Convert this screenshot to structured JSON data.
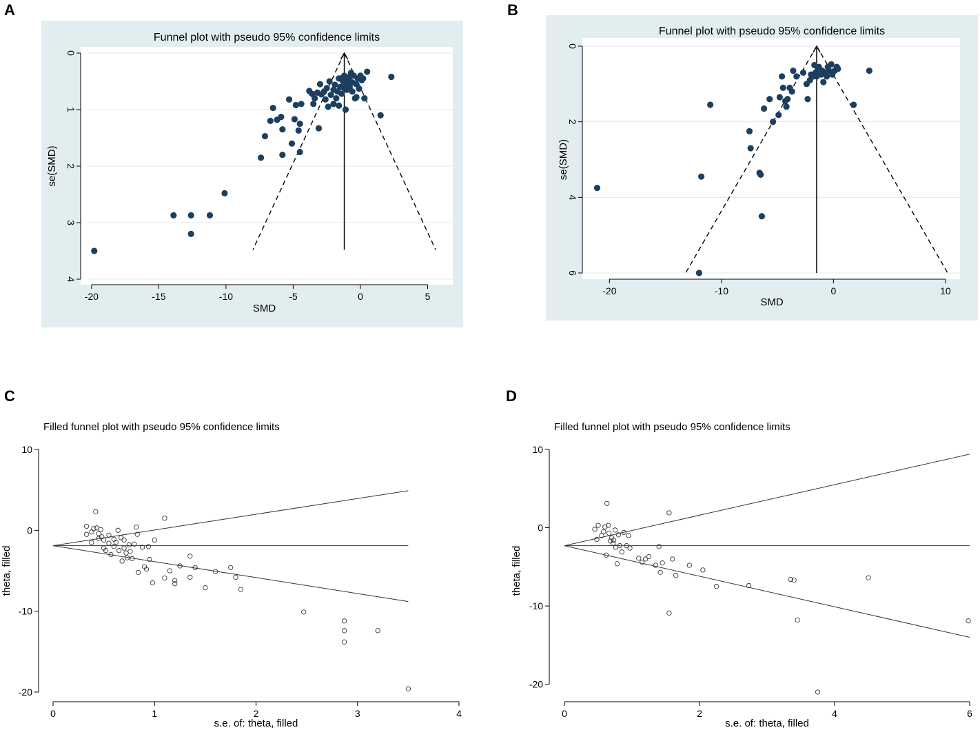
{
  "chart_data": [
    {
      "panel": "A",
      "type": "scatter",
      "title": "Funnel plot with pseudo 95% confidence limits",
      "xlabel": "SMD",
      "ylabel": "se(SMD)",
      "xlim": [
        -20.3,
        6
      ],
      "ylim": [
        0,
        4
      ],
      "y_inverted": true,
      "xticks": [
        -20,
        -15,
        -10,
        -5,
        0,
        5
      ],
      "yticks": [
        0,
        1,
        2,
        3,
        4
      ],
      "pooled": -1.2,
      "funnel": {
        "apex": [
          -1.2,
          0
        ],
        "left": [
          -8.0,
          3.48
        ],
        "right": [
          5.6,
          3.48
        ]
      },
      "points": [
        [
          -19.8,
          3.5
        ],
        [
          -13.9,
          2.87
        ],
        [
          -12.6,
          2.87
        ],
        [
          -12.6,
          3.2
        ],
        [
          -11.2,
          2.87
        ],
        [
          -10.1,
          2.48
        ],
        [
          -7.4,
          1.85
        ],
        [
          -7.1,
          1.47
        ],
        [
          -6.7,
          1.2
        ],
        [
          -6.5,
          0.97
        ],
        [
          -6.2,
          1.18
        ],
        [
          -5.9,
          1.13
        ],
        [
          -5.8,
          1.8
        ],
        [
          -5.8,
          1.35
        ],
        [
          -5.3,
          0.82
        ],
        [
          -5.1,
          1.6
        ],
        [
          -4.9,
          1.17
        ],
        [
          -4.8,
          0.92
        ],
        [
          -4.6,
          1.37
        ],
        [
          -4.5,
          1.25
        ],
        [
          -4.5,
          1.75
        ],
        [
          -4.4,
          0.9
        ],
        [
          -3.8,
          0.67
        ],
        [
          -3.6,
          0.72
        ],
        [
          -3.5,
          0.9
        ],
        [
          -3.4,
          0.8
        ],
        [
          -3.2,
          0.7
        ],
        [
          -3.1,
          1.33
        ],
        [
          -3.0,
          0.55
        ],
        [
          -2.9,
          0.73
        ],
        [
          -2.7,
          0.68
        ],
        [
          -2.6,
          0.82
        ],
        [
          -2.5,
          0.62
        ],
        [
          -2.4,
          0.95
        ],
        [
          -2.3,
          0.5
        ],
        [
          -2.2,
          0.74
        ],
        [
          -2.0,
          0.65
        ],
        [
          -2.0,
          0.9
        ],
        [
          -1.9,
          0.56
        ],
        [
          -1.8,
          0.8
        ],
        [
          -1.7,
          0.68
        ],
        [
          -1.6,
          0.45
        ],
        [
          -1.6,
          0.93
        ],
        [
          -1.5,
          0.6
        ],
        [
          -1.4,
          0.72
        ],
        [
          -1.3,
          0.5
        ],
        [
          -1.2,
          0.4
        ],
        [
          -1.2,
          0.62
        ],
        [
          -1.1,
          0.55
        ],
        [
          -1.1,
          1.0
        ],
        [
          -1.0,
          0.45
        ],
        [
          -1.0,
          0.65
        ],
        [
          -0.9,
          0.5
        ],
        [
          -0.8,
          0.6
        ],
        [
          -0.7,
          0.35
        ],
        [
          -0.6,
          0.52
        ],
        [
          -0.6,
          0.68
        ],
        [
          -0.5,
          0.4
        ],
        [
          -0.4,
          0.8
        ],
        [
          -0.3,
          0.55
        ],
        [
          -0.3,
          0.78
        ],
        [
          -0.2,
          0.45
        ],
        [
          -0.1,
          0.63
        ],
        [
          0.0,
          0.4
        ],
        [
          0.1,
          0.48
        ],
        [
          0.2,
          0.45
        ],
        [
          0.3,
          0.8
        ],
        [
          0.5,
          0.33
        ],
        [
          2.3,
          0.42
        ],
        [
          1.5,
          1.1
        ],
        [
          -0.8,
          0.42
        ],
        [
          -1.5,
          0.45
        ]
      ]
    },
    {
      "panel": "B",
      "type": "scatter",
      "title": "Funnel plot with pseudo 95% confidence limits",
      "xlabel": "SMD",
      "ylabel": "se(SMD)",
      "xlim": [
        -21.5,
        10.5
      ],
      "ylim": [
        0,
        6
      ],
      "y_inverted": true,
      "xticks": [
        -20,
        -10,
        0,
        10
      ],
      "yticks": [
        0,
        2,
        4,
        6
      ],
      "pooled": -1.5,
      "funnel": {
        "apex": [
          -1.5,
          0
        ],
        "left": [
          -13.2,
          6.0
        ],
        "right": [
          10.2,
          6.0
        ]
      },
      "points": [
        [
          -21.1,
          3.75
        ],
        [
          -12.0,
          6.0
        ],
        [
          -11.8,
          3.45
        ],
        [
          -11.0,
          1.55
        ],
        [
          -7.5,
          2.25
        ],
        [
          -7.4,
          2.7
        ],
        [
          -6.6,
          3.35
        ],
        [
          -6.5,
          3.4
        ],
        [
          -6.4,
          4.5
        ],
        [
          -6.2,
          1.65
        ],
        [
          -5.7,
          1.4
        ],
        [
          -5.4,
          2.0
        ],
        [
          -4.9,
          1.82
        ],
        [
          -4.8,
          1.35
        ],
        [
          -4.6,
          0.8
        ],
        [
          -4.5,
          1.1
        ],
        [
          -4.3,
          1.45
        ],
        [
          -4.1,
          1.4
        ],
        [
          -4.2,
          1.6
        ],
        [
          -3.9,
          1.1
        ],
        [
          -3.7,
          1.2
        ],
        [
          -3.6,
          0.65
        ],
        [
          -3.3,
          0.8
        ],
        [
          -2.7,
          0.7
        ],
        [
          -2.3,
          1.4
        ],
        [
          -2.4,
          1.0
        ],
        [
          -2.1,
          0.9
        ],
        [
          -2.0,
          0.75
        ],
        [
          -1.8,
          0.8
        ],
        [
          -1.7,
          0.5
        ],
        [
          -1.6,
          0.7
        ],
        [
          -1.5,
          0.8
        ],
        [
          -1.4,
          0.6
        ],
        [
          -1.3,
          0.55
        ],
        [
          -1.1,
          0.75
        ],
        [
          -1.0,
          0.65
        ],
        [
          -0.9,
          0.95
        ],
        [
          -0.7,
          0.7
        ],
        [
          -0.6,
          0.8
        ],
        [
          -0.5,
          0.55
        ],
        [
          -0.4,
          0.65
        ],
        [
          -0.2,
          0.48
        ],
        [
          -0.1,
          0.75
        ],
        [
          0.1,
          0.65
        ],
        [
          0.3,
          0.55
        ],
        [
          0.4,
          0.6
        ],
        [
          1.8,
          1.55
        ],
        [
          3.2,
          0.65
        ]
      ]
    },
    {
      "panel": "C",
      "type": "scatter",
      "title": "Filled funnel plot with pseudo 95% confidence limits",
      "xlabel": "s.e. of: theta, filled",
      "ylabel": "theta, filled",
      "xlim": [
        0,
        4
      ],
      "ylim": [
        -20,
        10
      ],
      "xticks": [
        0,
        1,
        2,
        3,
        4
      ],
      "yticks": [
        -20,
        -10,
        0,
        10
      ],
      "lines": {
        "center": [
          [
            0,
            -1.9
          ],
          [
            3.5,
            -1.9
          ]
        ],
        "upper": [
          [
            0,
            -1.9
          ],
          [
            3.5,
            4.9
          ]
        ],
        "lower": [
          [
            0,
            -1.9
          ],
          [
            3.5,
            -8.8
          ]
        ]
      },
      "points": [
        [
          0.33,
          0.5
        ],
        [
          0.33,
          -0.5
        ],
        [
          0.38,
          -0.2
        ],
        [
          0.38,
          -1.5
        ],
        [
          0.4,
          0.2
        ],
        [
          0.42,
          2.3
        ],
        [
          0.43,
          0.3
        ],
        [
          0.45,
          -0.4
        ],
        [
          0.45,
          -1.0
        ],
        [
          0.47,
          0.1
        ],
        [
          0.48,
          -0.8
        ],
        [
          0.5,
          -1.2
        ],
        [
          0.5,
          -2.2
        ],
        [
          0.52,
          -2.5
        ],
        [
          0.55,
          -0.6
        ],
        [
          0.55,
          -1.6
        ],
        [
          0.57,
          -3.0
        ],
        [
          0.6,
          -1.1
        ],
        [
          0.6,
          -2.0
        ],
        [
          0.62,
          -1.5
        ],
        [
          0.64,
          0.0
        ],
        [
          0.65,
          -2.5
        ],
        [
          0.67,
          -0.9
        ],
        [
          0.68,
          -3.8
        ],
        [
          0.7,
          -1.2
        ],
        [
          0.7,
          -2.2
        ],
        [
          0.72,
          -2.8
        ],
        [
          0.73,
          -3.4
        ],
        [
          0.75,
          -1.8
        ],
        [
          0.76,
          -2.6
        ],
        [
          0.78,
          -3.5
        ],
        [
          0.8,
          -1.7
        ],
        [
          0.82,
          0.4
        ],
        [
          0.83,
          -0.5
        ],
        [
          0.84,
          -5.2
        ],
        [
          0.88,
          -2.1
        ],
        [
          0.9,
          -4.5
        ],
        [
          0.92,
          -4.8
        ],
        [
          0.94,
          -2.0
        ],
        [
          0.95,
          -3.6
        ],
        [
          0.98,
          -6.5
        ],
        [
          1.0,
          -1.2
        ],
        [
          1.1,
          1.5
        ],
        [
          1.1,
          -5.9
        ],
        [
          1.15,
          -5.0
        ],
        [
          1.2,
          -6.2
        ],
        [
          1.2,
          -6.6
        ],
        [
          1.25,
          -4.4
        ],
        [
          1.35,
          -3.2
        ],
        [
          1.35,
          -5.8
        ],
        [
          1.4,
          -4.6
        ],
        [
          1.5,
          -7.1
        ],
        [
          1.6,
          -5.1
        ],
        [
          1.75,
          -4.6
        ],
        [
          1.8,
          -5.8
        ],
        [
          1.85,
          -7.3
        ],
        [
          2.47,
          -10.1
        ],
        [
          2.87,
          -11.2
        ],
        [
          2.87,
          -12.4
        ],
        [
          2.87,
          -13.8
        ],
        [
          3.2,
          -12.4
        ],
        [
          3.5,
          -19.6
        ]
      ]
    },
    {
      "panel": "D",
      "type": "scatter",
      "title": "Filled funnel plot with pseudo 95% confidence limits",
      "xlabel": "s.e. of: theta, filled",
      "ylabel": "theta, filled",
      "xlim": [
        0,
        6
      ],
      "ylim": [
        -21,
        10
      ],
      "xticks": [
        0,
        2,
        4,
        6
      ],
      "yticks": [
        -20,
        -10,
        0,
        10
      ],
      "lines": {
        "center": [
          [
            0,
            -2.3
          ],
          [
            6.0,
            -2.3
          ]
        ],
        "upper": [
          [
            0,
            -2.3
          ],
          [
            6.0,
            9.4
          ]
        ],
        "lower": [
          [
            0,
            -2.3
          ],
          [
            6.0,
            -14.0
          ]
        ]
      },
      "points": [
        [
          0.45,
          -0.2
        ],
        [
          0.48,
          -1.5
        ],
        [
          0.5,
          0.3
        ],
        [
          0.55,
          -1.0
        ],
        [
          0.58,
          -0.5
        ],
        [
          0.6,
          0.1
        ],
        [
          0.62,
          -3.5
        ],
        [
          0.63,
          3.1
        ],
        [
          0.65,
          0.3
        ],
        [
          0.66,
          -0.7
        ],
        [
          0.68,
          -1.7
        ],
        [
          0.7,
          -1.3
        ],
        [
          0.72,
          -2.0
        ],
        [
          0.73,
          -1.6
        ],
        [
          0.75,
          -0.3
        ],
        [
          0.76,
          -2.5
        ],
        [
          0.78,
          -4.6
        ],
        [
          0.8,
          -0.9
        ],
        [
          0.82,
          -2.3
        ],
        [
          0.85,
          -3.1
        ],
        [
          0.88,
          -0.6
        ],
        [
          0.92,
          -2.3
        ],
        [
          0.95,
          -1.0
        ],
        [
          0.97,
          -2.6
        ],
        [
          1.1,
          -3.9
        ],
        [
          1.15,
          -4.4
        ],
        [
          1.2,
          -4.0
        ],
        [
          1.25,
          -3.7
        ],
        [
          1.35,
          -4.8
        ],
        [
          1.4,
          -2.4
        ],
        [
          1.42,
          -5.7
        ],
        [
          1.45,
          -4.5
        ],
        [
          1.55,
          1.9
        ],
        [
          1.55,
          -10.9
        ],
        [
          1.6,
          -4.0
        ],
        [
          1.65,
          -6.1
        ],
        [
          1.85,
          -4.8
        ],
        [
          2.05,
          -5.4
        ],
        [
          2.25,
          -7.5
        ],
        [
          2.73,
          -7.4
        ],
        [
          3.35,
          -6.6
        ],
        [
          3.4,
          -6.7
        ],
        [
          3.45,
          -11.8
        ],
        [
          3.75,
          -21.0
        ],
        [
          4.5,
          -6.4
        ],
        [
          5.98,
          -11.9
        ]
      ]
    }
  ]
}
